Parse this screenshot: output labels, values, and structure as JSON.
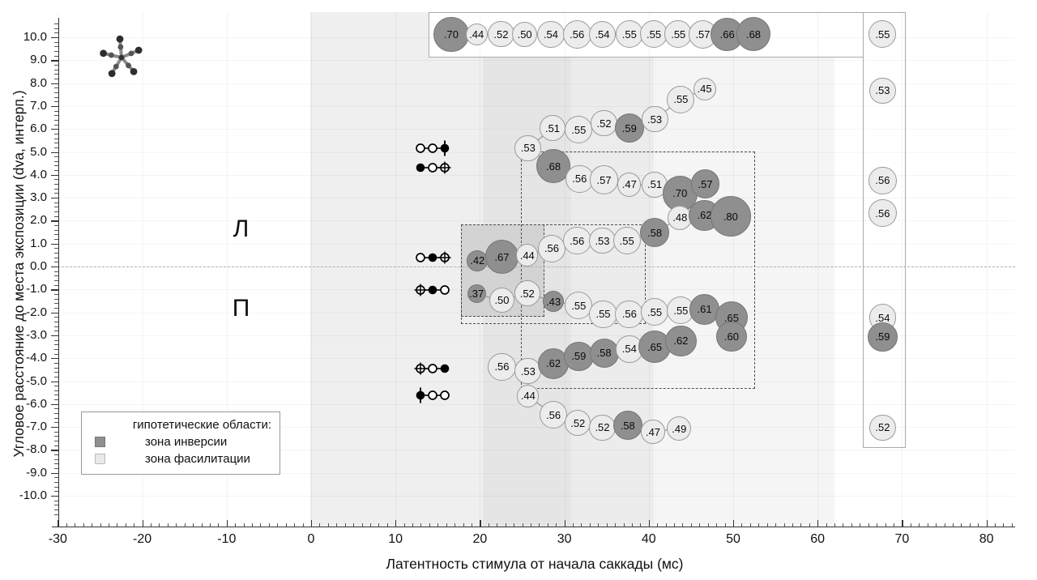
{
  "chart_data": {
    "type": "bubble",
    "title": "",
    "axes": {
      "x": {
        "label": "Латентность стимула от начала саккады (мс)",
        "ticks": [
          -30,
          -20,
          -10,
          0,
          10,
          20,
          30,
          40,
          50,
          60,
          70,
          80
        ],
        "lim": [
          -30,
          83
        ]
      },
      "y": {
        "label": "Угловое расстояние до места экспозиции (dva, интерп.)",
        "ticks": [
          10,
          9,
          8,
          7,
          6,
          5,
          4,
          3,
          2,
          1,
          0,
          -1,
          -2,
          -3,
          -4,
          -5,
          -6,
          -7,
          -8,
          -9,
          -10
        ],
        "lim": [
          -10.8,
          10.6
        ]
      }
    },
    "zero_line_dva": 0,
    "point_format": "[latency_ms, distance_dva, value, is_dark(1=зона инверсии цвет)]",
    "chains": [
      {
        "name": "top_row",
        "points": [
          [
            16.6,
            10.13,
            0.7,
            1
          ],
          [
            19.6,
            10.13,
            0.44,
            0
          ],
          [
            22.5,
            10.13,
            0.52,
            0
          ],
          [
            25.3,
            10.13,
            0.5,
            0
          ],
          [
            28.4,
            10.13,
            0.54,
            0
          ],
          [
            31.5,
            10.13,
            0.56,
            0
          ],
          [
            34.5,
            10.13,
            0.54,
            0
          ],
          [
            37.7,
            10.13,
            0.55,
            0
          ],
          [
            40.6,
            10.13,
            0.55,
            0
          ],
          [
            43.5,
            10.13,
            0.55,
            0
          ],
          [
            46.4,
            10.13,
            0.57,
            0
          ],
          [
            49.3,
            10.13,
            0.66,
            1
          ],
          [
            52.4,
            10.13,
            0.68,
            1
          ]
        ]
      },
      {
        "name": "upper_diagonal",
        "points": [
          [
            25.7,
            5.16,
            0.53,
            0
          ],
          [
            28.6,
            6.04,
            0.51,
            0
          ],
          [
            31.7,
            5.97,
            0.55,
            0
          ],
          [
            34.7,
            6.25,
            0.52,
            0
          ],
          [
            37.7,
            6.04,
            0.59,
            1
          ],
          [
            40.7,
            6.43,
            0.53,
            0
          ],
          [
            43.8,
            7.28,
            0.55,
            0
          ],
          [
            46.6,
            7.74,
            0.45,
            0
          ]
        ]
      },
      {
        "name": "mid_upper",
        "points": [
          [
            28.7,
            4.38,
            0.68,
            1
          ],
          [
            31.8,
            3.82,
            0.56,
            0
          ],
          [
            34.7,
            3.78,
            0.57,
            0
          ],
          [
            37.7,
            3.57,
            0.47,
            0
          ],
          [
            40.7,
            3.57,
            0.51,
            0
          ],
          [
            43.7,
            3.18,
            0.7,
            1
          ],
          [
            46.7,
            3.6,
            0.57,
            1
          ]
        ]
      },
      {
        "name": "center_upper",
        "points": [
          [
            19.7,
            0.25,
            0.42,
            1
          ],
          [
            22.6,
            0.42,
            0.67,
            1
          ],
          [
            25.6,
            0.49,
            0.44,
            0
          ],
          [
            28.5,
            0.78,
            0.56,
            0
          ],
          [
            31.5,
            1.13,
            0.56,
            0
          ],
          [
            34.5,
            1.13,
            0.53,
            0
          ],
          [
            37.4,
            1.13,
            0.55,
            0
          ],
          [
            40.7,
            1.48,
            0.58,
            1
          ],
          [
            43.7,
            2.12,
            0.48,
            0
          ],
          [
            46.6,
            2.23,
            0.62,
            1
          ],
          [
            49.7,
            2.19,
            0.8,
            1
          ]
        ]
      },
      {
        "name": "center_lower",
        "points": [
          [
            19.6,
            -1.2,
            0.37,
            1
          ],
          [
            22.6,
            -1.48,
            0.5,
            0
          ],
          [
            25.6,
            -1.17,
            0.52,
            0
          ],
          [
            28.7,
            -1.52,
            0.43,
            1
          ],
          [
            31.7,
            -1.7,
            0.55,
            0
          ],
          [
            34.6,
            -2.08,
            0.55,
            0
          ],
          [
            37.7,
            -2.08,
            0.56,
            0
          ],
          [
            40.7,
            -1.98,
            0.55,
            0
          ],
          [
            43.8,
            -1.91,
            0.55,
            0
          ],
          [
            46.6,
            -1.87,
            0.61,
            1
          ],
          [
            49.8,
            -2.23,
            0.65,
            1
          ],
          [
            49.8,
            -3.07,
            0.6,
            1
          ]
        ]
      },
      {
        "name": "lower_diagonal",
        "points": [
          [
            22.6,
            -4.38,
            0.56,
            0
          ],
          [
            25.7,
            -4.56,
            0.53,
            0
          ],
          [
            28.7,
            -4.24,
            0.62,
            1
          ],
          [
            31.7,
            -3.92,
            0.59,
            1
          ],
          [
            34.7,
            -3.78,
            0.58,
            1
          ],
          [
            37.7,
            -3.6,
            0.54,
            0
          ],
          [
            40.7,
            -3.5,
            0.65,
            1
          ],
          [
            43.8,
            -3.25,
            0.62,
            1
          ]
        ]
      },
      {
        "name": "bottom_row",
        "points": [
          [
            25.7,
            -5.65,
            0.44,
            0
          ],
          [
            28.7,
            -6.47,
            0.56,
            0
          ],
          [
            31.6,
            -6.83,
            0.52,
            0
          ],
          [
            34.5,
            -7.03,
            0.52,
            0
          ],
          [
            37.5,
            -6.93,
            0.58,
            1
          ],
          [
            40.5,
            -7.21,
            0.47,
            0
          ],
          [
            43.6,
            -7.07,
            0.49,
            0
          ]
        ]
      }
    ],
    "right_column": {
      "points": [
        [
          67.7,
          10.13,
          0.55,
          0
        ],
        [
          67.7,
          7.67,
          0.53,
          0
        ],
        [
          67.7,
          3.75,
          0.56,
          0
        ],
        [
          67.7,
          2.33,
          0.56,
          0
        ],
        [
          67.7,
          -2.23,
          0.54,
          0
        ],
        [
          67.7,
          -3.07,
          0.59,
          1
        ],
        [
          67.7,
          -7.03,
          0.52,
          0
        ]
      ]
    },
    "links": [
      [
        "upper_diagonal",
        0,
        "mid_upper",
        0
      ],
      [
        "lower_diagonal",
        1,
        "bottom_row",
        0
      ]
    ],
    "bands": [
      {
        "from_ms": -0.1,
        "to_ms": 20.3,
        "color": "#efefef"
      },
      {
        "from_ms": 20.3,
        "to_ms": 30.8,
        "color": "#e5e5e5"
      },
      {
        "from_ms": 30.8,
        "to_ms": 40.6,
        "color": "#ececec"
      },
      {
        "from_ms": 40.6,
        "to_ms": 62.0,
        "color": "#f5f5f5"
      }
    ],
    "zones": {
      "inversion_patch": {
        "t": [
          17.8,
          27.6
        ],
        "d": [
          1.84,
          -2.19
        ],
        "color": "#d3d3d3"
      },
      "dashed_rects": [
        {
          "name": "inner-dashed-rect",
          "t": [
            17.8,
            39.6
          ],
          "d": [
            1.84,
            -2.51
          ]
        },
        {
          "name": "outer-dashed-rect",
          "t": [
            24.9,
            52.6
          ],
          "d": [
            5.02,
            -5.34
          ]
        }
      ]
    },
    "boxes": [
      {
        "name": "top-row-box",
        "t": [
          13.9,
          70.4
        ],
        "d": [
          11.1,
          9.12
        ]
      },
      {
        "name": "right-column-box",
        "t": [
          65.4,
          70.4
        ],
        "d": [
          11.1,
          -7.92
        ]
      }
    ],
    "letters": [
      {
        "text": "Л",
        "t": -8.3,
        "d": 1.62
      },
      {
        "text": "П",
        "t": -8.3,
        "d": -1.82
      }
    ],
    "stimulus_markers": [
      {
        "d": 5.16,
        "pattern": [
          "open",
          "open",
          "filled_line"
        ]
      },
      {
        "d": 4.31,
        "pattern": [
          "filled",
          "open",
          "cross"
        ]
      },
      {
        "d": 0.39,
        "pattern": [
          "open",
          "filled",
          "cross"
        ]
      },
      {
        "d": -1.03,
        "pattern": [
          "cross",
          "filled",
          "open"
        ]
      },
      {
        "d": -4.45,
        "pattern": [
          "cross",
          "open",
          "filled"
        ]
      },
      {
        "d": -5.62,
        "pattern": [
          "filled_line",
          "open",
          "open"
        ]
      }
    ],
    "star_icon": {
      "t": -22.5,
      "d": 9.1
    },
    "colors": {
      "dark_bubble": "#8f8f8f",
      "light_bubble": "#ececec",
      "connector": "#9b9b9b"
    }
  },
  "legend": {
    "title": "гипотетические области:",
    "items": [
      {
        "label": "зона инверсии",
        "color": "#8f8f8f",
        "border": "#777777"
      },
      {
        "label": "зона фасилитации",
        "color": "#e9e9e9",
        "border": "#bbbbbb"
      }
    ]
  }
}
